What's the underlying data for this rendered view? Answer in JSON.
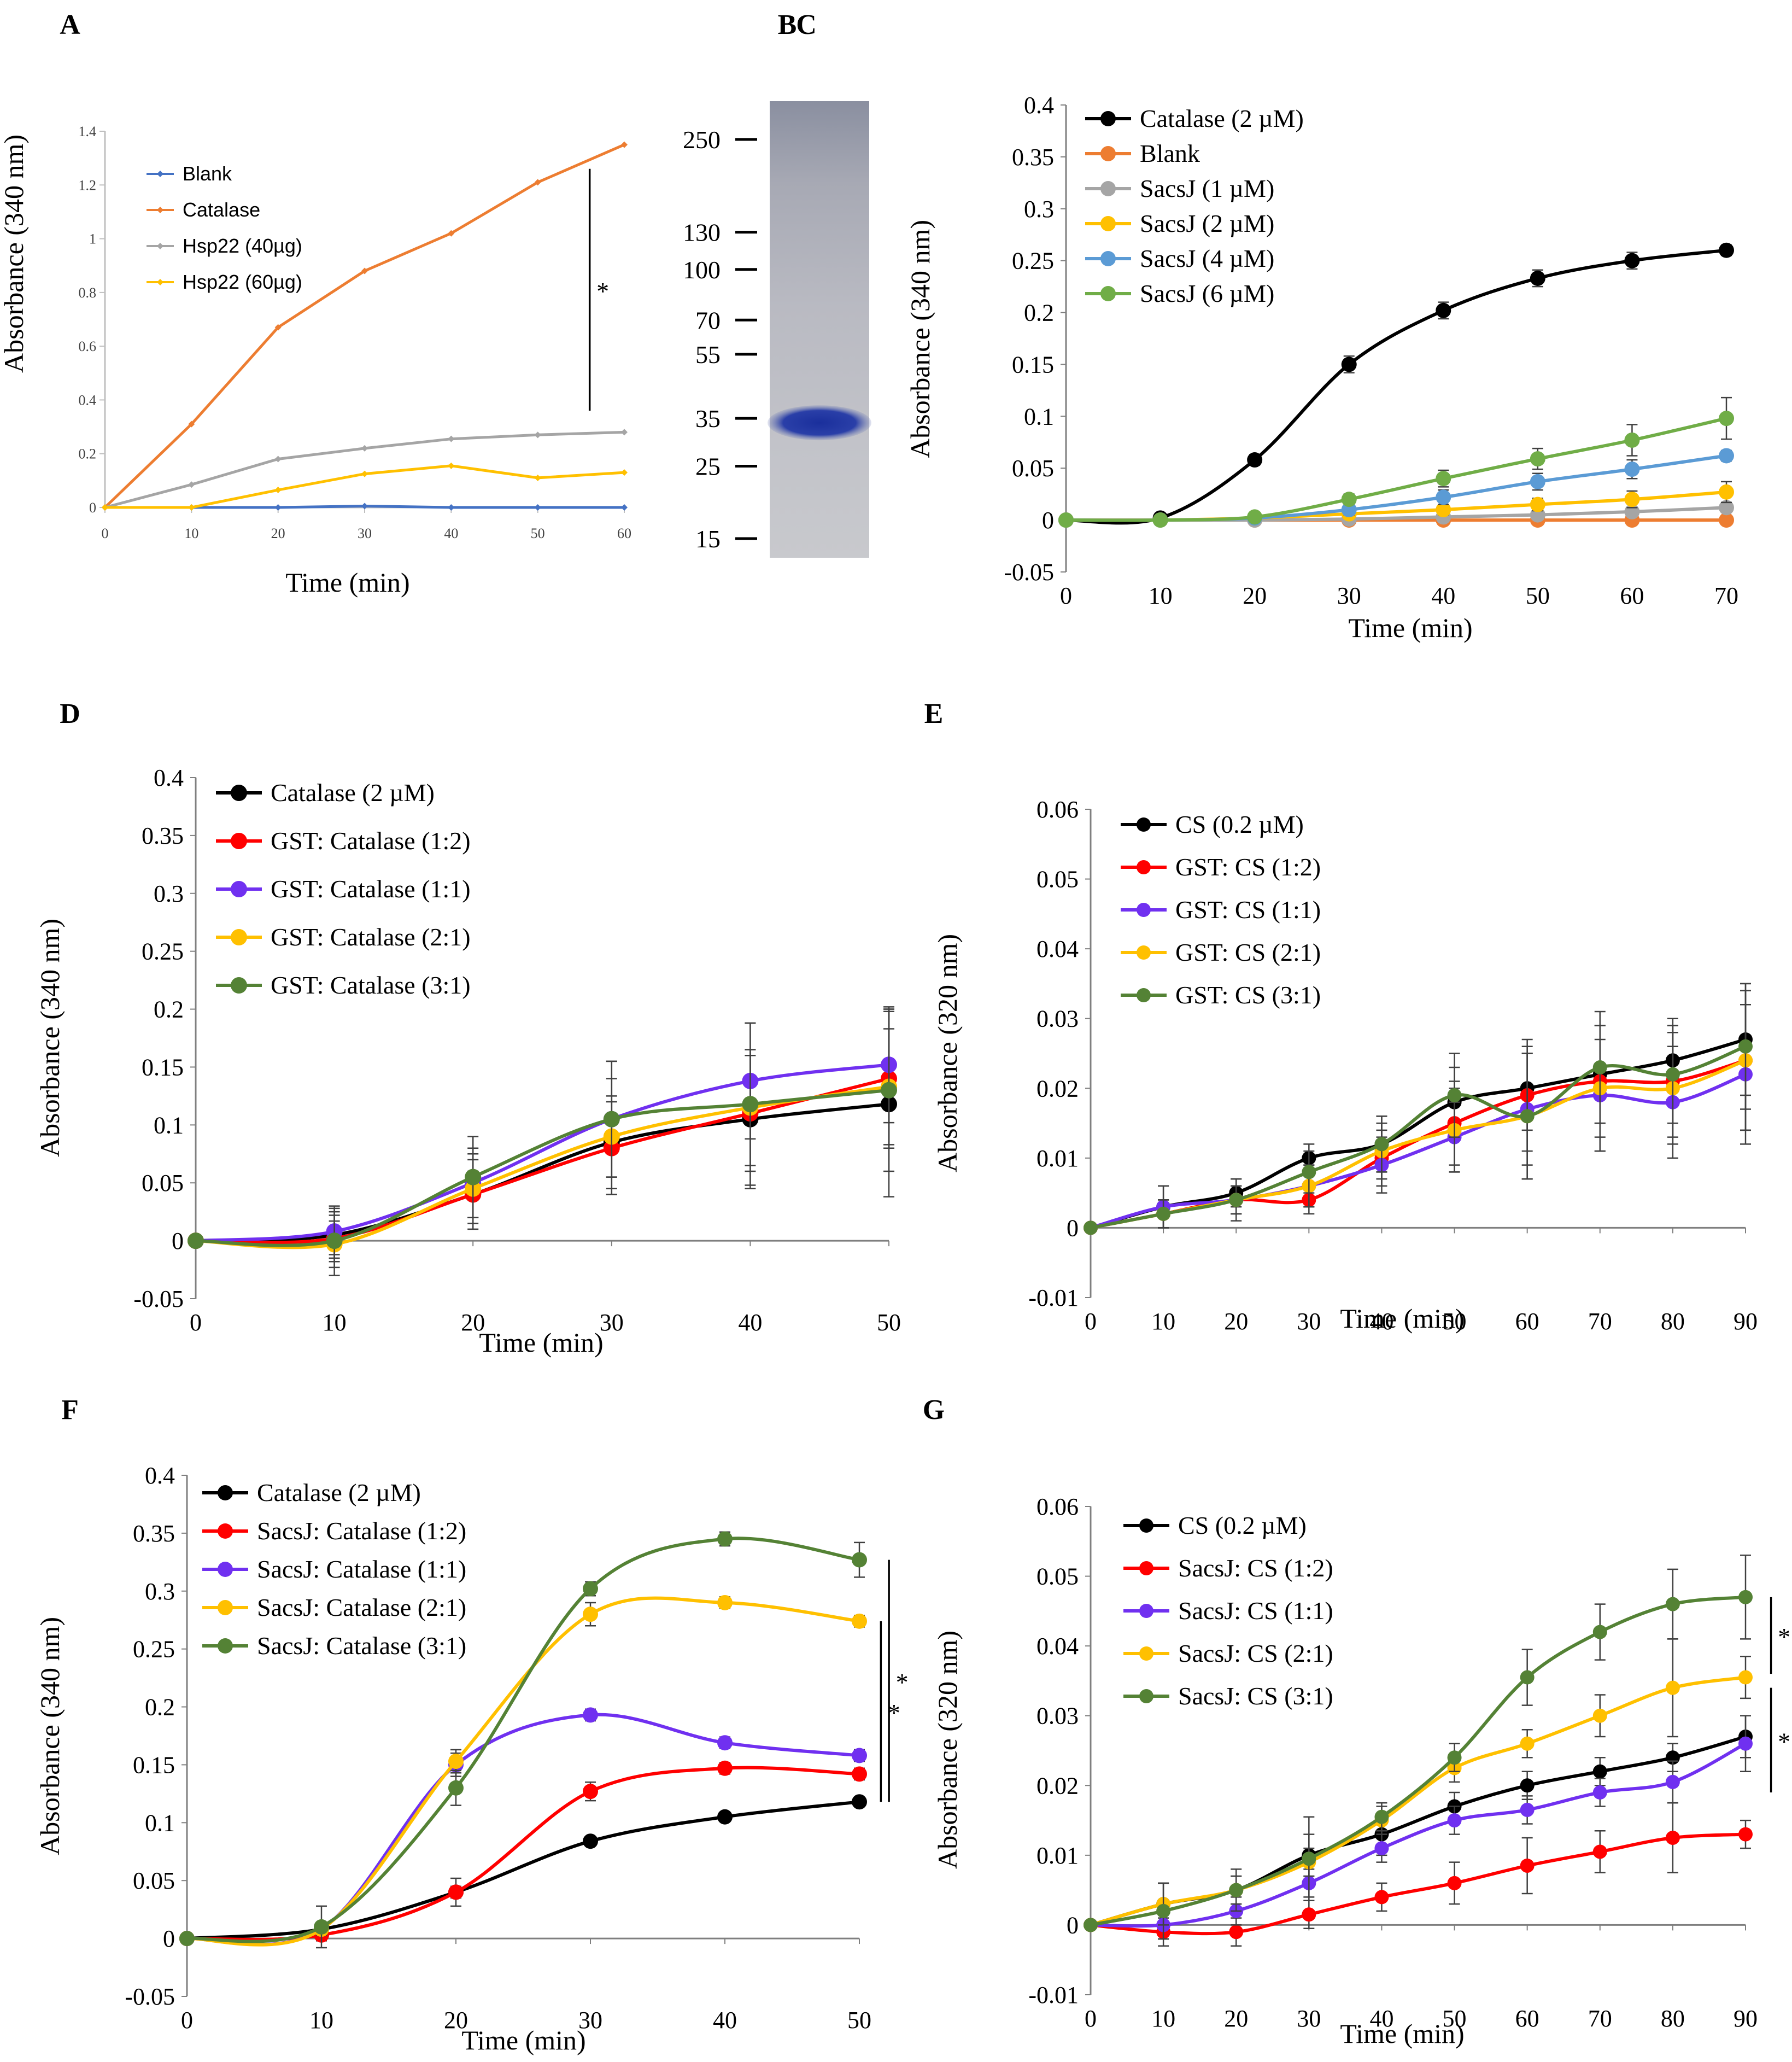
{
  "figure": {
    "background": "#ffffff"
  },
  "colors": {
    "black": "#000000",
    "orange": "#ED7D31",
    "gray": "#A5A5A5",
    "yellow": "#FFC000",
    "blue": "#4472C4",
    "lightblue": "#5B9BD5",
    "green": "#70AD47",
    "darkgreen": "#548235",
    "red": "#FF0000",
    "purple": "#7030F0",
    "gel_band": "#1a2f9c"
  },
  "gel": {
    "panel_label": "B",
    "markers": [
      "250",
      "130",
      "100",
      "70",
      "55",
      "35",
      "25",
      "15"
    ],
    "marker_values": [
      250,
      130,
      100,
      70,
      55,
      35,
      25,
      15
    ],
    "band_kda": 35
  },
  "chart_data": [
    {
      "id": "A",
      "panel_label": "A",
      "type": "line",
      "xlabel": "Time (min)",
      "ylabel": "Absorbance (340 nm)",
      "xlim": [
        0,
        60
      ],
      "ylim": [
        0,
        1.4
      ],
      "xticks": [
        "0",
        "10",
        "20",
        "30",
        "40",
        "50",
        "60"
      ],
      "yticks": [
        "0",
        "0.2",
        "0.4",
        "0.6",
        "0.8",
        "1",
        "1.2",
        "1.4"
      ],
      "x": [
        0,
        10,
        20,
        30,
        40,
        50,
        60
      ],
      "series": [
        {
          "name": "Blank",
          "color": "#4472C4",
          "marker": "diamond",
          "values": [
            0,
            0,
            0,
            0.005,
            0,
            0,
            0
          ]
        },
        {
          "name": "Catalase",
          "color": "#ED7D31",
          "marker": "diamond",
          "values": [
            0,
            0.31,
            0.67,
            0.88,
            1.02,
            1.21,
            1.35
          ]
        },
        {
          "name": "Hsp22 (40µg)",
          "color": "#A5A5A5",
          "marker": "diamond",
          "values": [
            0,
            0.085,
            0.18,
            0.22,
            0.255,
            0.27,
            0.28
          ]
        },
        {
          "name": "Hsp22 (60µg)",
          "color": "#FFC000",
          "marker": "diamond",
          "values": [
            0,
            0,
            0.065,
            0.125,
            0.155,
            0.11,
            0.13
          ]
        }
      ],
      "sig_markers": [
        {
          "text": "*",
          "x": 56,
          "y_range": [
            0.36,
            1.26
          ]
        }
      ],
      "legend": "top-left"
    },
    {
      "id": "C",
      "panel_label": "C",
      "type": "line",
      "xlabel": "Time (min)",
      "ylabel": "Absorbance (340 nm)",
      "xlim": [
        0,
        70
      ],
      "ylim": [
        -0.05,
        0.4
      ],
      "xticks": [
        "0",
        "10",
        "20",
        "30",
        "40",
        "50",
        "60",
        "70"
      ],
      "yticks": [
        "-0.05",
        "0",
        "0.05",
        "0.1",
        "0.15",
        "0.2",
        "0.25",
        "0.3",
        "0.35",
        "0.4"
      ],
      "x": [
        0,
        10,
        20,
        30,
        40,
        50,
        60,
        70
      ],
      "series": [
        {
          "name": "Catalase (2 µM)",
          "color": "#000000",
          "values": [
            0,
            0.002,
            0.058,
            0.15,
            0.202,
            0.233,
            0.25,
            0.26
          ],
          "err": [
            0,
            0.004,
            0.005,
            0.008,
            0.008,
            0.008,
            0.008,
            0.005
          ]
        },
        {
          "name": "Blank",
          "color": "#ED7D31",
          "values": [
            0,
            0,
            0,
            0,
            0,
            0,
            0,
            0
          ],
          "err": [
            0,
            0,
            0,
            0,
            0,
            0,
            0,
            0
          ]
        },
        {
          "name": "SacsJ (1 µM)",
          "color": "#A5A5A5",
          "values": [
            0,
            0,
            0,
            0.001,
            0.003,
            0.005,
            0.008,
            0.012
          ],
          "err": [
            0,
            0,
            0,
            0.002,
            0.002,
            0.003,
            0.003,
            0.003
          ]
        },
        {
          "name": "SacsJ (2 µM)",
          "color": "#FFC000",
          "values": [
            0,
            0,
            0.002,
            0.006,
            0.01,
            0.015,
            0.02,
            0.027
          ],
          "err": [
            0,
            0,
            0.002,
            0.004,
            0.005,
            0.006,
            0.008,
            0.01
          ]
        },
        {
          "name": "SacsJ (4 µM)",
          "color": "#5B9BD5",
          "values": [
            0,
            0,
            0.002,
            0.01,
            0.022,
            0.037,
            0.049,
            0.062
          ],
          "err": [
            0,
            0,
            0.002,
            0.005,
            0.007,
            0.008,
            0.009,
            0.005
          ]
        },
        {
          "name": "SacsJ (6 µM)",
          "color": "#70AD47",
          "values": [
            0,
            0,
            0.003,
            0.02,
            0.04,
            0.059,
            0.077,
            0.098
          ],
          "err": [
            0,
            0,
            0.003,
            0.005,
            0.008,
            0.01,
            0.015,
            0.02
          ]
        }
      ],
      "legend": "top-left"
    },
    {
      "id": "D",
      "panel_label": "D",
      "type": "line",
      "xlabel": "Time (min)",
      "ylabel": "Absorbance (340 nm)",
      "xlim": [
        0,
        50
      ],
      "ylim": [
        -0.05,
        0.4
      ],
      "xticks": [
        "0",
        "10",
        "20",
        "30",
        "40",
        "50"
      ],
      "yticks": [
        "-0.05",
        "0",
        "0.05",
        "0.1",
        "0.15",
        "0.2",
        "0.25",
        "0.3",
        "0.35",
        "0.4"
      ],
      "x": [
        0,
        10,
        20,
        30,
        40,
        50
      ],
      "series": [
        {
          "name": "Catalase (2 µM)",
          "color": "#000000",
          "values": [
            0,
            0.005,
            0.04,
            0.085,
            0.105,
            0.118
          ],
          "err": [
            0,
            0.02,
            0.03,
            0.04,
            0.06,
            0.08
          ]
        },
        {
          "name": "GST: Catalase (1:2)",
          "color": "#FF0000",
          "values": [
            0,
            0.002,
            0.04,
            0.08,
            0.11,
            0.14
          ],
          "err": [
            0,
            0.02,
            0.02,
            0.04,
            0.05,
            0.06
          ]
        },
        {
          "name": "GST: Catalase (1:1)",
          "color": "#7030F0",
          "values": [
            0,
            0.008,
            0.05,
            0.105,
            0.138,
            0.152
          ],
          "err": [
            0,
            0.02,
            0.03,
            0.05,
            0.05,
            0.05
          ]
        },
        {
          "name": "GST: Catalase (2:1)",
          "color": "#FFC000",
          "values": [
            0,
            -0.003,
            0.045,
            0.09,
            0.115,
            0.133
          ],
          "err": [
            0,
            0.02,
            0.03,
            0.05,
            0.05,
            0.05
          ]
        },
        {
          "name": "GST: Catalase (3:1)",
          "color": "#548235",
          "values": [
            0,
            0,
            0.055,
            0.105,
            0.118,
            0.13
          ],
          "err": [
            0,
            0.03,
            0.035,
            0.05,
            0.07,
            0.07
          ]
        }
      ],
      "legend": "top-left"
    },
    {
      "id": "E",
      "panel_label": "E",
      "type": "line",
      "xlabel": "Time (min)",
      "ylabel": "Absorbance (320 nm)",
      "xlim": [
        0,
        90
      ],
      "ylim": [
        -0.01,
        0.06
      ],
      "xticks": [
        "0",
        "10",
        "20",
        "30",
        "40",
        "50",
        "60",
        "70",
        "80",
        "90"
      ],
      "yticks": [
        "-0.01",
        "0",
        "0.01",
        "0.02",
        "0.03",
        "0.04",
        "0.05",
        "0.06"
      ],
      "x": [
        0,
        10,
        20,
        30,
        40,
        50,
        60,
        70,
        80,
        90
      ],
      "series": [
        {
          "name": "CS (0.2 µM)",
          "color": "#000000",
          "values": [
            0,
            0.003,
            0.005,
            0.01,
            0.012,
            0.018,
            0.02,
            0.022,
            0.024,
            0.027
          ],
          "err": [
            0,
            0.003,
            0.002,
            0.002,
            0.004,
            0.005,
            0.006,
            0.007,
            0.006,
            0.008
          ]
        },
        {
          "name": "GST: CS (1:2)",
          "color": "#FF0000",
          "values": [
            0,
            0.002,
            0.004,
            0.004,
            0.01,
            0.015,
            0.019,
            0.021,
            0.021,
            0.024
          ],
          "err": [
            0,
            0.002,
            0.002,
            0.002,
            0.004,
            0.006,
            0.008,
            0.008,
            0.008,
            0.01
          ]
        },
        {
          "name": "GST: CS (1:1)",
          "color": "#7030F0",
          "values": [
            0,
            0.003,
            0.004,
            0.006,
            0.009,
            0.013,
            0.017,
            0.019,
            0.018,
            0.022
          ],
          "err": [
            0,
            0.003,
            0.003,
            0.003,
            0.004,
            0.005,
            0.008,
            0.008,
            0.008,
            0.01
          ]
        },
        {
          "name": "GST: CS (2:1)",
          "color": "#FFC000",
          "values": [
            0,
            0.002,
            0.004,
            0.006,
            0.011,
            0.014,
            0.016,
            0.02,
            0.02,
            0.024
          ],
          "err": [
            0,
            0.002,
            0.002,
            0.003,
            0.004,
            0.006,
            0.009,
            0.009,
            0.008,
            0.01
          ]
        },
        {
          "name": "GST: CS (3:1)",
          "color": "#548235",
          "values": [
            0,
            0.002,
            0.004,
            0.008,
            0.012,
            0.019,
            0.016,
            0.023,
            0.022,
            0.026
          ],
          "err": [
            0,
            0.002,
            0.002,
            0.003,
            0.004,
            0.006,
            0.009,
            0.008,
            0.007,
            0.009
          ]
        }
      ],
      "legend": "top-left"
    },
    {
      "id": "F",
      "panel_label": "F",
      "type": "line",
      "xlabel": "Time (min)",
      "ylabel": "Absorbance (340 nm)",
      "xlim": [
        0,
        50
      ],
      "ylim": [
        -0.05,
        0.4
      ],
      "xticks": [
        "0",
        "10",
        "20",
        "30",
        "40",
        "50"
      ],
      "yticks": [
        "-0.05",
        "0",
        "0.05",
        "0.1",
        "0.15",
        "0.2",
        "0.25",
        "0.3",
        "0.35",
        "0.4"
      ],
      "x": [
        0,
        10,
        20,
        30,
        40,
        50
      ],
      "series": [
        {
          "name": "Catalase (2 µM)",
          "color": "#000000",
          "values": [
            0,
            0.008,
            0.04,
            0.084,
            0.105,
            0.118
          ],
          "err": [
            0,
            0.005,
            0.005,
            0.004,
            0.004,
            0.004
          ]
        },
        {
          "name": "SacsJ: Catalase (1:2)",
          "color": "#FF0000",
          "values": [
            0,
            0.003,
            0.04,
            0.127,
            0.147,
            0.142
          ],
          "err": [
            0,
            0.005,
            0.012,
            0.008,
            0.005,
            0.005
          ]
        },
        {
          "name": "SacsJ: Catalase (1:1)",
          "color": "#7030F0",
          "values": [
            0,
            0.008,
            0.15,
            0.193,
            0.169,
            0.158
          ],
          "err": [
            0,
            0.005,
            0.01,
            0.005,
            0.005,
            0.005
          ]
        },
        {
          "name": "SacsJ: Catalase (2:1)",
          "color": "#FFC000",
          "values": [
            0,
            0.008,
            0.153,
            0.28,
            0.29,
            0.274
          ],
          "err": [
            0,
            0.005,
            0.01,
            0.01,
            0.005,
            0.005
          ]
        },
        {
          "name": "SacsJ: Catalase (3:1)",
          "color": "#548235",
          "values": [
            0,
            0.01,
            0.13,
            0.302,
            0.345,
            0.327
          ],
          "err": [
            0,
            0.018,
            0.015,
            0.006,
            0.006,
            0.015
          ]
        }
      ],
      "sig_markers": [
        {
          "text": "*",
          "x": 52.2,
          "y_range": [
            0.118,
            0.327
          ]
        },
        {
          "text": "*",
          "x": 51.6,
          "y_range": [
            0.118,
            0.274
          ]
        }
      ],
      "legend": "top-left"
    },
    {
      "id": "G",
      "panel_label": "G",
      "type": "line",
      "xlabel": "Time (min)",
      "ylabel": "Absorbance (320 nm)",
      "xlim": [
        0,
        90
      ],
      "ylim": [
        -0.01,
        0.06
      ],
      "xticks": [
        "0",
        "10",
        "20",
        "30",
        "40",
        "50",
        "60",
        "70",
        "80",
        "90"
      ],
      "yticks": [
        "-0.01",
        "0",
        "0.01",
        "0.02",
        "0.03",
        "0.04",
        "0.05",
        "0.06"
      ],
      "x": [
        0,
        10,
        20,
        30,
        40,
        50,
        60,
        70,
        80,
        90
      ],
      "series": [
        {
          "name": "CS (0.2 µM)",
          "color": "#000000",
          "values": [
            0,
            0.003,
            0.005,
            0.01,
            0.013,
            0.017,
            0.02,
            0.022,
            0.024,
            0.027
          ],
          "err": [
            0,
            0.003,
            0.002,
            0.003,
            0.003,
            0.002,
            0.002,
            0.002,
            0.002,
            0.003
          ]
        },
        {
          "name": "SacsJ: CS (1:2)",
          "color": "#FF0000",
          "values": [
            0,
            -0.001,
            -0.001,
            0.0015,
            0.004,
            0.006,
            0.0085,
            0.0105,
            0.0125,
            0.013
          ],
          "err": [
            0,
            0.002,
            0.002,
            0.002,
            0.002,
            0.003,
            0.004,
            0.003,
            0.005,
            0.002
          ]
        },
        {
          "name": "SacsJ: CS (1:1)",
          "color": "#7030F0",
          "values": [
            0,
            0,
            0.002,
            0.006,
            0.011,
            0.015,
            0.0165,
            0.019,
            0.0205,
            0.026
          ],
          "err": [
            0,
            0.002,
            0.002,
            0.002,
            0.002,
            0.002,
            0.002,
            0.002,
            0.003,
            0.004
          ]
        },
        {
          "name": "SacsJ: CS (2:1)",
          "color": "#FFC000",
          "values": [
            0,
            0.003,
            0.005,
            0.009,
            0.015,
            0.0225,
            0.026,
            0.03,
            0.034,
            0.0355
          ],
          "err": [
            0,
            0.003,
            0.002,
            0.002,
            0.002,
            0.002,
            0.002,
            0.003,
            0.007,
            0.003
          ]
        },
        {
          "name": "SacsJ: CS (3:1)",
          "color": "#548235",
          "values": [
            0,
            0.002,
            0.005,
            0.0095,
            0.0155,
            0.024,
            0.0355,
            0.042,
            0.046,
            0.047
          ],
          "err": [
            0,
            0.004,
            0.003,
            0.006,
            0.002,
            0.002,
            0.004,
            0.004,
            0.005,
            0.006
          ]
        }
      ],
      "sig_markers": [
        {
          "text": "*",
          "x": 93.5,
          "y_range": [
            0.036,
            0.047
          ]
        },
        {
          "text": "*",
          "x": 93.5,
          "y_range": [
            0.019,
            0.034
          ]
        }
      ],
      "legend": "top-left"
    }
  ]
}
